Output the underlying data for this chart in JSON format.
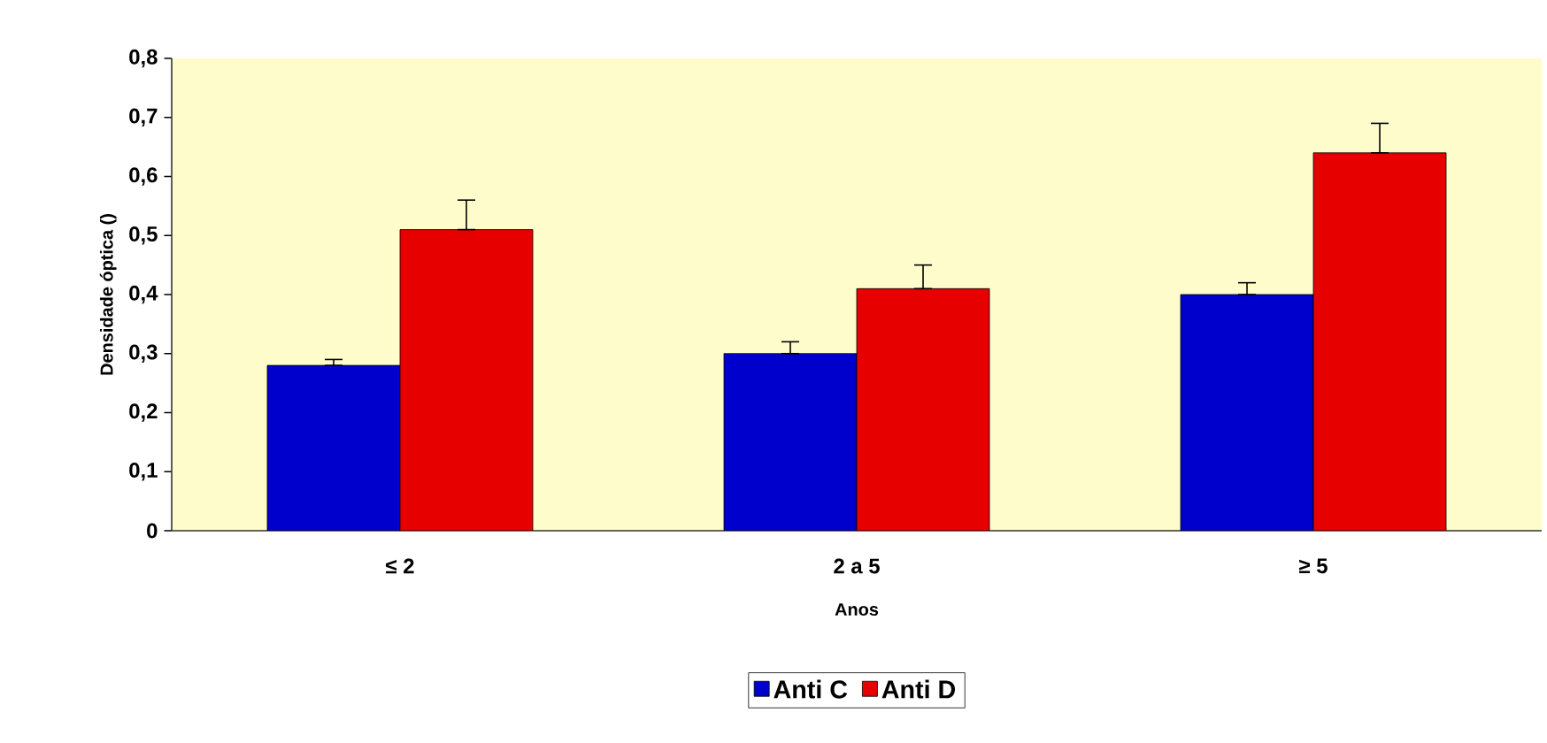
{
  "chart_data": {
    "type": "bar",
    "xlabel": "Anos",
    "ylabel": "Densidade óptica ()",
    "categories": [
      "≤ 2",
      "2 a 5",
      "≥ 5"
    ],
    "series": [
      {
        "name": "Anti C",
        "color": "#0000cc",
        "values": [
          0.28,
          0.3,
          0.4
        ],
        "errors": [
          [
            0.28,
            0.29
          ],
          [
            0.3,
            0.32
          ],
          [
            0.4,
            0.42
          ]
        ]
      },
      {
        "name": "Anti D",
        "color": "#e60000",
        "values": [
          0.51,
          0.41,
          0.64
        ],
        "errors": [
          [
            0.51,
            0.56
          ],
          [
            0.41,
            0.45
          ],
          [
            0.64,
            0.69
          ]
        ]
      }
    ],
    "ylim": [
      0,
      0.8
    ],
    "yticks": [
      {
        "value": 0,
        "label": "0"
      },
      {
        "value": 0.1,
        "label": "0,1"
      },
      {
        "value": 0.2,
        "label": "0,2"
      },
      {
        "value": 0.3,
        "label": "0,3"
      },
      {
        "value": 0.4,
        "label": "0,4"
      },
      {
        "value": 0.5,
        "label": "0,5"
      },
      {
        "value": 0.6,
        "label": "0,6"
      },
      {
        "value": 0.7,
        "label": "0,7"
      },
      {
        "value": 0.8,
        "label": "0,8"
      }
    ],
    "grid": false,
    "legend": "bottom"
  }
}
